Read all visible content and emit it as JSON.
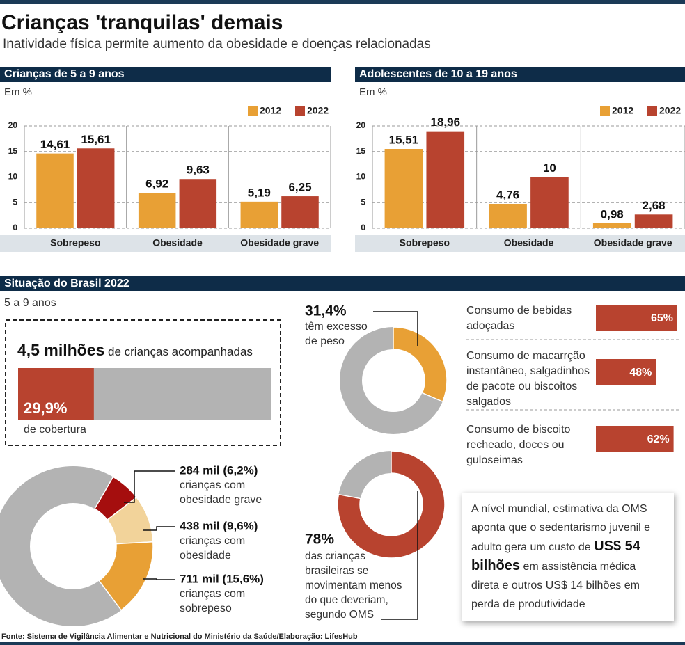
{
  "header": {
    "title": "Crianças 'tranquilas' demais",
    "subtitle": "Inatividade física permite aumento da obesidade e doenças relacionadas"
  },
  "chart_data": [
    {
      "type": "bar",
      "title": "Crianças de 5 a 9 anos",
      "y_label": "Em %",
      "categories": [
        "Sobrepeso",
        "Obesidade",
        "Obesidade grave"
      ],
      "series": [
        {
          "name": "2012",
          "color": "#e8a035",
          "values": [
            14.61,
            6.92,
            5.19
          ],
          "value_labels": [
            "14,61",
            "6,92",
            "5,19"
          ]
        },
        {
          "name": "2022",
          "color": "#b8432f",
          "values": [
            15.61,
            9.63,
            6.25
          ],
          "value_labels": [
            "15,61",
            "9,63",
            "6,25"
          ]
        }
      ],
      "ylim": [
        0,
        20
      ],
      "yticks": [
        0,
        5,
        10,
        15,
        20
      ],
      "grid": true
    },
    {
      "type": "bar",
      "title": "Adolescentes de 10 a 19 anos",
      "y_label": "Em %",
      "categories": [
        "Sobrepeso",
        "Obesidade",
        "Obesidade grave"
      ],
      "series": [
        {
          "name": "2012",
          "color": "#e8a035",
          "values": [
            15.51,
            4.76,
            0.98
          ],
          "value_labels": [
            "15,51",
            "4,76",
            "0,98"
          ]
        },
        {
          "name": "2022",
          "color": "#b8432f",
          "values": [
            18.96,
            10,
            2.68
          ],
          "value_labels": [
            "18,96",
            "10",
            "2,68"
          ]
        }
      ],
      "ylim": [
        0,
        20
      ],
      "yticks": [
        0,
        5,
        10,
        15,
        20
      ],
      "grid": true
    },
    {
      "type": "share-bar",
      "title_value": "4,5 milhões",
      "title": "de crianças acompanhadas",
      "values": [
        29.9
      ],
      "value_labels": [
        "29,9%"
      ],
      "label": "de cobertura",
      "xlim": [
        0,
        100
      ],
      "color": "#b8432f",
      "track_color": "#b3b3b3"
    },
    {
      "type": "donut",
      "values": [
        6.2,
        9.6,
        15.6
      ],
      "value_labels": [
        "284 mil (6,2%)",
        "438 mil (9,6%)",
        "711 mil (15,6%)"
      ],
      "categories": [
        "crianças com obesidade grave",
        "crianças com obesidade",
        "crianças com sobrepeso"
      ],
      "colors": [
        "#a50e0e",
        "#f2d39a",
        "#e8a035"
      ],
      "track_color": "#b3b3b3"
    },
    {
      "type": "donut",
      "values": [
        31.4
      ],
      "value_labels": [
        "31,4%"
      ],
      "categories": [
        "têm excesso de peso"
      ],
      "colors": [
        "#e8a035"
      ],
      "track_color": "#b3b3b3"
    },
    {
      "type": "donut",
      "values": [
        78
      ],
      "value_labels": [
        "78%"
      ],
      "categories": [
        "das crianças brasileiras se movimentam menos do que deveriam, segundo OMS"
      ],
      "colors": [
        "#b8432f"
      ],
      "track_color": "#b3b3b3"
    },
    {
      "type": "hbar",
      "categories": [
        "Consumo de bebidas adoçadas",
        "Consumo de macarrção instantâneo, salgadinhos de pacote ou biscoitos salgados",
        "Consumo de biscoito recheado, doces ou guloseimas"
      ],
      "values": [
        65,
        48,
        62
      ],
      "value_labels": [
        "65%",
        "48%",
        "62%"
      ],
      "xlim": [
        0,
        100
      ],
      "color": "#b8432f"
    }
  ],
  "section": {
    "title": "Situação do Brasil 2022",
    "subtitle": "5 a 9 anos"
  },
  "note": {
    "before": "A nível mundial, estimativa da OMS aponta que o sedentarismo juvenil e adulto gera um custo de",
    "highlight": "US$ 54 bilhões",
    "after": "em assistência médica direta e outros US$ 14 bilhões em perda de produtividade"
  },
  "source": "Fonte: Sistema de Vigilância Alimentar e Nutricional do Ministério da Saúde/Elaboração: LifesHub"
}
